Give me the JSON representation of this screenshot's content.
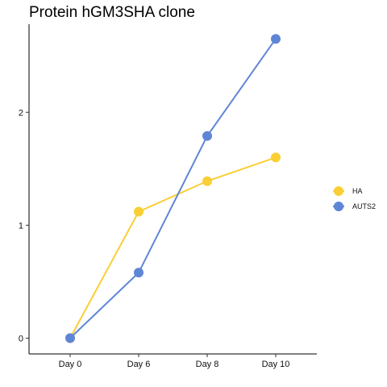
{
  "chart_data": {
    "type": "line",
    "title": "Protein hGM3SHA clone",
    "xlabel": "",
    "ylabel": "",
    "categories": [
      "Day 0",
      "Day 6",
      "Day 8",
      "Day 10"
    ],
    "yticks": [
      "0",
      "1",
      "2"
    ],
    "ylim": [
      -0.14,
      2.78
    ],
    "grid": false,
    "legend_position": "right",
    "series": [
      {
        "name": "HA",
        "color": "#F9CF35",
        "values": [
          0.0,
          1.12,
          1.39,
          1.6
        ]
      },
      {
        "name": "AUTS2",
        "color": "#5F86D6",
        "values": [
          0.0,
          0.58,
          1.79,
          2.65
        ]
      }
    ]
  }
}
